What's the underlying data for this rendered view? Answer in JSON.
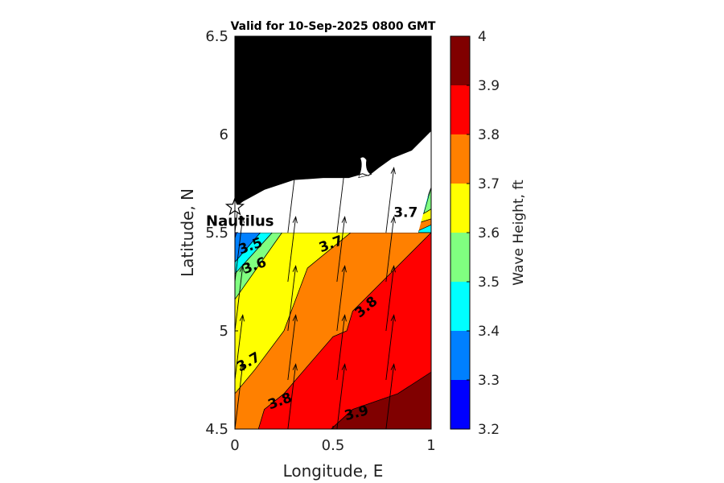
{
  "chart_data": {
    "type": "heatmap",
    "subtype": "filled-contour",
    "title": "Valid for 10-Sep-2025 0800 GMT",
    "xlabel": "Longitude, E",
    "ylabel": "Latitude, N",
    "xlim": [
      0,
      1
    ],
    "ylim": [
      4.5,
      6.5
    ],
    "x_ticks": [
      {
        "value": 0,
        "label": "0"
      },
      {
        "value": 0.5,
        "label": "0.5"
      },
      {
        "value": 1,
        "label": "1"
      }
    ],
    "y_ticks": [
      {
        "value": 4.5,
        "label": "4.5"
      },
      {
        "value": 5,
        "label": "5"
      },
      {
        "value": 5.5,
        "label": "5.5"
      },
      {
        "value": 6,
        "label": "6"
      },
      {
        "value": 6.5,
        "label": "6.5"
      }
    ],
    "colorbar": {
      "label": "Wave Height, ft",
      "levels": [
        3.2,
        3.3,
        3.4,
        3.5,
        3.6,
        3.7,
        3.8,
        3.9,
        4.0
      ],
      "tick_labels": [
        "3.2",
        "3.3",
        "3.4",
        "3.5",
        "3.6",
        "3.7",
        "3.8",
        "3.9",
        "4"
      ],
      "colors": [
        "#0000ff",
        "#0080ff",
        "#00ffff",
        "#80ff80",
        "#ffff00",
        "#ff8000",
        "#ff0000",
        "#800000"
      ]
    },
    "contour_bands": [
      {
        "range": [
          3.4,
          3.5
        ],
        "color": "#00ffff",
        "points": [
          [
            0.934,
            5.5
          ],
          [
            1,
            5.5
          ],
          [
            1,
            5.73
          ],
          [
            0.91,
            5.5
          ]
        ]
      },
      {
        "range": [
          3.5,
          3.6
        ],
        "color": "#80ff80",
        "points": [
          [
            0.8,
            5.5
          ],
          [
            0.934,
            5.5
          ],
          [
            1,
            5.73
          ],
          [
            1,
            5.62
          ]
        ]
      },
      {
        "range": [
          3.6,
          3.7
        ],
        "color": "#ffff00",
        "points": [
          [
            0.78,
            5.5
          ],
          [
            0.8,
            5.5
          ],
          [
            1,
            5.62
          ],
          [
            1,
            5.57
          ]
        ]
      },
      {
        "range": [
          3.2,
          3.3
        ],
        "color": "#0000ff",
        "points": [
          [
            0,
            5.5
          ],
          [
            0.008,
            5.5
          ],
          [
            0,
            5.47
          ]
        ]
      },
      {
        "range": [
          3.3,
          3.4
        ],
        "color": "#0080ff",
        "points": [
          [
            0.008,
            5.5
          ],
          [
            0.13,
            5.5
          ],
          [
            0,
            5.35
          ],
          [
            0,
            5.47
          ]
        ]
      },
      {
        "range": [
          3.4,
          3.5
        ],
        "color": "#00ffff",
        "points": [
          [
            0.13,
            5.5
          ],
          [
            0.19,
            5.5
          ],
          [
            0,
            5.29
          ],
          [
            0,
            5.35
          ]
        ]
      },
      {
        "range": [
          3.5,
          3.6
        ],
        "color": "#80ff80",
        "points": [
          [
            0.19,
            5.5
          ],
          [
            0.24,
            5.5
          ],
          [
            0,
            5.16
          ],
          [
            0,
            5.29
          ]
        ]
      },
      {
        "range": [
          3.6,
          3.7
        ],
        "color": "#ffff00",
        "points": [
          [
            0.24,
            5.5
          ],
          [
            0.59,
            5.5
          ],
          [
            0.37,
            5.32
          ],
          [
            0.25,
            5.0
          ],
          [
            0.1,
            4.8
          ],
          [
            0,
            4.68
          ],
          [
            0,
            5.16
          ]
        ]
      },
      {
        "range": [
          3.7,
          3.8
        ],
        "color": "#ff8000",
        "points": [
          [
            0.59,
            5.5
          ],
          [
            1,
            5.5
          ],
          [
            1,
            5.57
          ],
          [
            0.78,
            5.5
          ],
          [
            0.8,
            5.5
          ],
          [
            0.935,
            5.51
          ],
          [
            1,
            5.54
          ],
          [
            1,
            5.5
          ],
          [
            0.6,
            5.1
          ],
          [
            0.57,
            5.0
          ],
          [
            0.5,
            4.97
          ],
          [
            0.37,
            4.82
          ],
          [
            0.25,
            4.68
          ],
          [
            0.15,
            4.6
          ],
          [
            0.12,
            4.5
          ],
          [
            0,
            4.5
          ],
          [
            0,
            4.68
          ],
          [
            0.1,
            4.8
          ],
          [
            0.25,
            5.0
          ],
          [
            0.37,
            5.32
          ]
        ]
      },
      {
        "range": [
          3.8,
          3.9
        ],
        "color": "#ff0000",
        "points": [
          [
            1,
            5.5
          ],
          [
            0.6,
            5.1
          ],
          [
            0.57,
            5.0
          ],
          [
            0.5,
            4.97
          ],
          [
            0.37,
            4.82
          ],
          [
            0.25,
            4.68
          ],
          [
            0.15,
            4.6
          ],
          [
            0.12,
            4.5
          ],
          [
            0.49,
            4.5
          ],
          [
            0.6,
            4.6
          ],
          [
            0.83,
            4.68
          ],
          [
            1,
            4.79
          ]
        ]
      },
      {
        "range": [
          3.9,
          4.0
        ],
        "color": "#800000",
        "points": [
          [
            0.49,
            4.5
          ],
          [
            1,
            4.5
          ],
          [
            1,
            4.79
          ],
          [
            0.83,
            4.68
          ],
          [
            0.6,
            4.6
          ]
        ]
      }
    ],
    "contour_labels": [
      {
        "text": "3.5",
        "x": 0.08,
        "y": 5.43,
        "angle": -20
      },
      {
        "text": "3.6",
        "x": 0.1,
        "y": 5.33,
        "angle": -20
      },
      {
        "text": "3.7",
        "x": 0.49,
        "y": 5.44,
        "angle": -20
      },
      {
        "text": "3.7",
        "x": 0.87,
        "y": 5.6,
        "angle": 0
      },
      {
        "text": "3.8",
        "x": 0.67,
        "y": 5.12,
        "angle": -40
      },
      {
        "text": "3.7",
        "x": 0.07,
        "y": 4.84,
        "angle": -30
      },
      {
        "text": "3.8",
        "x": 0.23,
        "y": 4.64,
        "angle": -20
      },
      {
        "text": "3.9",
        "x": 0.62,
        "y": 4.58,
        "angle": -15
      }
    ],
    "wave_direction_arrows": {
      "x": [
        0,
        0.27,
        0.52,
        0.77
      ],
      "y": [
        4.5,
        4.75,
        5.0,
        5.25,
        5.5
      ],
      "direction": "toward north-northeast",
      "dx": 0.04,
      "dy": 0.33
    },
    "land_mask": {
      "color": "#000000",
      "coastline": [
        [
          0,
          5.63
        ],
        [
          0.04,
          5.66
        ],
        [
          0.15,
          5.72
        ],
        [
          0.3,
          5.77
        ],
        [
          0.45,
          5.78
        ],
        [
          0.58,
          5.78
        ],
        [
          0.65,
          5.8
        ],
        [
          0.68,
          5.79
        ],
        [
          0.73,
          5.83
        ],
        [
          0.8,
          5.88
        ],
        [
          0.9,
          5.92
        ],
        [
          1,
          6.02
        ]
      ]
    },
    "markers": [
      {
        "name": "Nautilus",
        "x": 0,
        "y": 5.63,
        "symbol": "star"
      }
    ],
    "grid": false
  }
}
